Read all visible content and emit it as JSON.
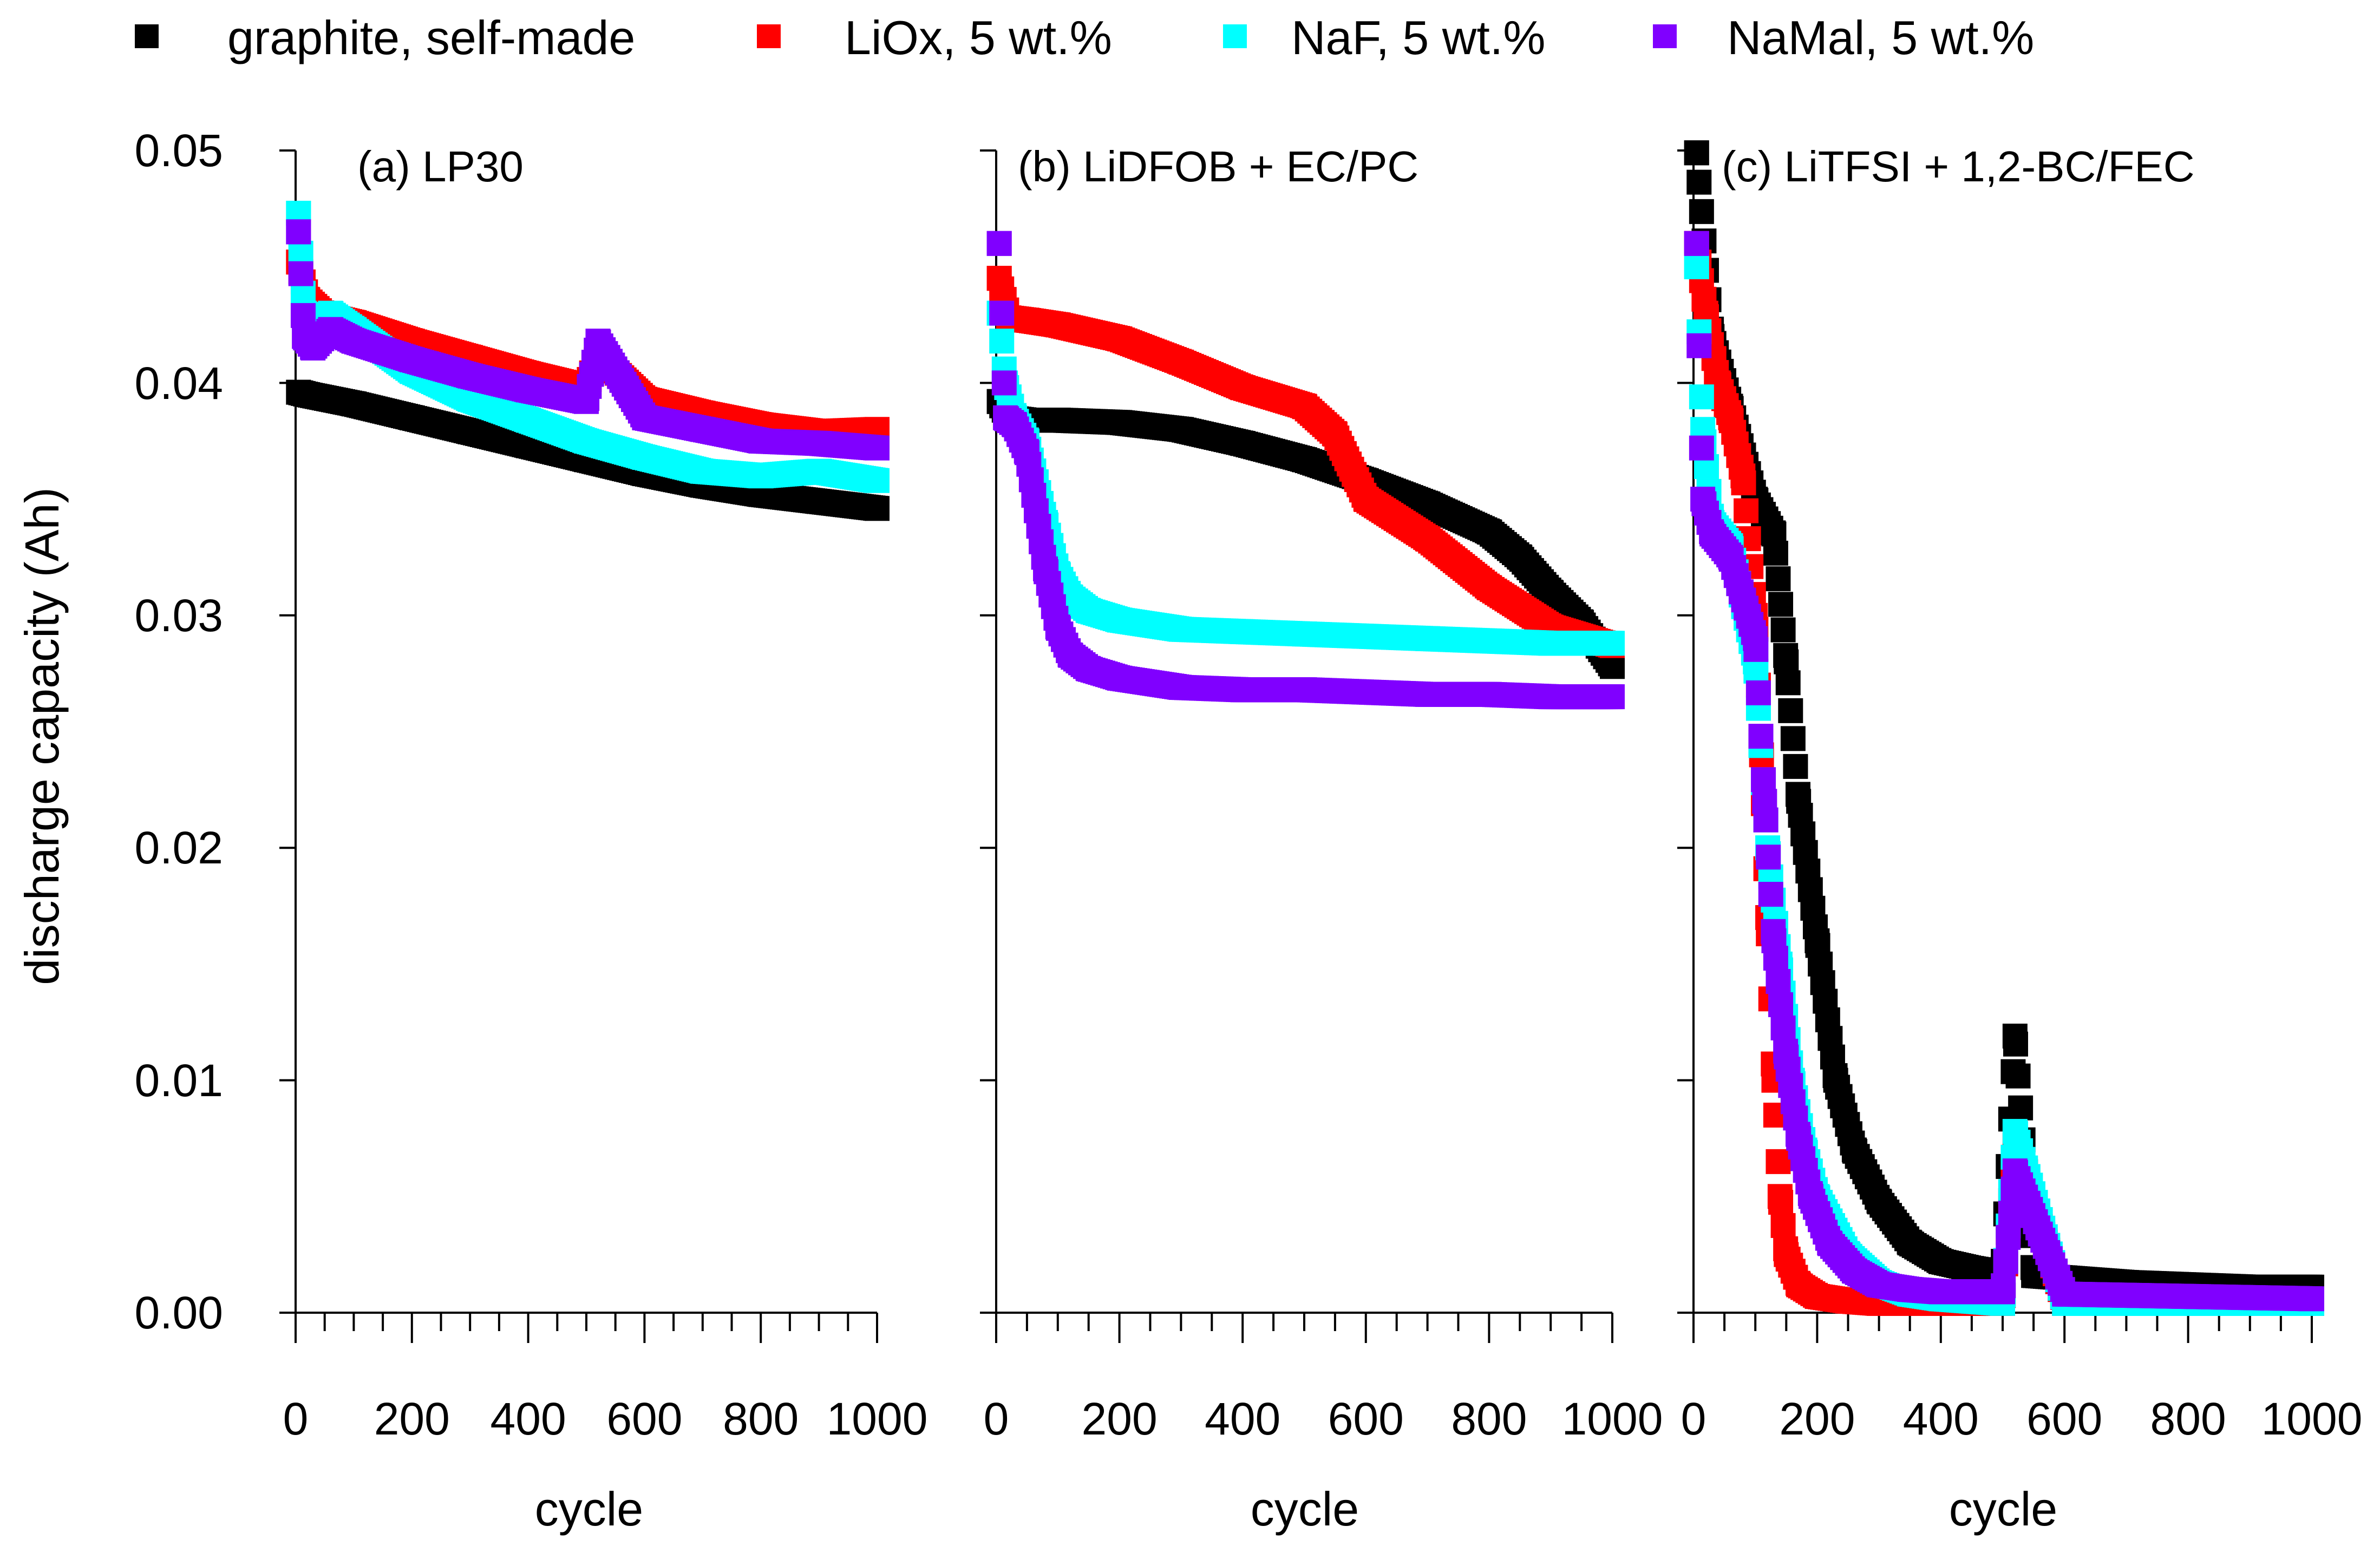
{
  "legend": [
    {
      "label": "graphite, self-made",
      "color": "#000000"
    },
    {
      "label": "LiOx, 5 wt.%",
      "color": "#ff0000"
    },
    {
      "label": "NaF, 5 wt.%",
      "color": "#00ffff"
    },
    {
      "label": "NaMal, 5 wt.%",
      "color": "#8000ff"
    }
  ],
  "y_axis": {
    "label": "discharge capacity (Ah)",
    "ticks": [
      "0.00",
      "0.01",
      "0.02",
      "0.03",
      "0.04",
      "0.05"
    ]
  },
  "x_ticks": [
    "0",
    "200",
    "400",
    "600",
    "800",
    "1000"
  ],
  "chart_data": [
    {
      "type": "scatter",
      "title": "(a) LP30",
      "xlabel": "cycle",
      "ylabel": "discharge capacity (Ah)",
      "xlim": [
        0,
        1000
      ],
      "ylim": [
        0,
        0.05
      ],
      "series": [
        {
          "name": "graphite, self-made",
          "color": "#000000",
          "x": [
            5,
            20,
            100,
            200,
            300,
            400,
            500,
            600,
            700,
            800,
            900,
            1000
          ],
          "y": [
            0.0396,
            0.0395,
            0.0391,
            0.0385,
            0.0379,
            0.0373,
            0.0367,
            0.0361,
            0.0356,
            0.0352,
            0.0349,
            0.0346
          ]
        },
        {
          "name": "LiOx, 5 wt.%",
          "color": "#ff0000",
          "x": [
            5,
            20,
            50,
            100,
            200,
            300,
            400,
            500,
            520,
            600,
            700,
            800,
            900,
            1000
          ],
          "y": [
            0.0452,
            0.0436,
            0.0429,
            0.0426,
            0.0418,
            0.0411,
            0.0404,
            0.0398,
            0.0412,
            0.0393,
            0.0387,
            0.0382,
            0.0379,
            0.038
          ]
        },
        {
          "name": "NaF, 5 wt.%",
          "color": "#00ffff",
          "x": [
            5,
            15,
            30,
            60,
            100,
            200,
            300,
            400,
            500,
            600,
            700,
            800,
            900,
            1000
          ],
          "y": [
            0.0473,
            0.043,
            0.0425,
            0.043,
            0.0423,
            0.0405,
            0.0393,
            0.0384,
            0.0375,
            0.0368,
            0.0362,
            0.036,
            0.0362,
            0.0358
          ]
        },
        {
          "name": "NaMal, 5 wt.%",
          "color": "#8000ff",
          "x": [
            5,
            15,
            30,
            60,
            100,
            200,
            300,
            400,
            500,
            520,
            600,
            700,
            800,
            900,
            1000
          ],
          "y": [
            0.0465,
            0.042,
            0.0415,
            0.0423,
            0.0418,
            0.041,
            0.0403,
            0.0397,
            0.0392,
            0.0418,
            0.0385,
            0.038,
            0.0375,
            0.0374,
            0.0372
          ]
        }
      ]
    },
    {
      "type": "scatter",
      "title": "(b) LiDFOB + EC/PC",
      "xlabel": "cycle",
      "ylabel": "discharge capacity (Ah)",
      "xlim": [
        0,
        1000
      ],
      "ylim": [
        0,
        0.05
      ],
      "series": [
        {
          "name": "graphite, self-made",
          "color": "#000000",
          "x": [
            5,
            20,
            50,
            100,
            200,
            300,
            400,
            500,
            600,
            700,
            800,
            850,
            900,
            950,
            1000
          ],
          "y": [
            0.0392,
            0.0385,
            0.0384,
            0.0384,
            0.0383,
            0.038,
            0.0374,
            0.0367,
            0.0358,
            0.0348,
            0.0336,
            0.0325,
            0.031,
            0.0297,
            0.0278
          ]
        },
        {
          "name": "LiOx, 5 wt.%",
          "color": "#ff0000",
          "x": [
            5,
            20,
            50,
            100,
            200,
            300,
            400,
            500,
            550,
            600,
            700,
            800,
            900,
            1000
          ],
          "y": [
            0.0445,
            0.0428,
            0.0427,
            0.0425,
            0.0419,
            0.0409,
            0.0398,
            0.039,
            0.0378,
            0.035,
            0.0333,
            0.0312,
            0.0295,
            0.0287
          ]
        },
        {
          "name": "NaF, 5 wt.%",
          "color": "#00ffff",
          "x": [
            5,
            15,
            30,
            50,
            80,
            100,
            120,
            150,
            200,
            300,
            400,
            500,
            600,
            700,
            800,
            900,
            1000
          ],
          "y": [
            0.043,
            0.04,
            0.0385,
            0.0375,
            0.034,
            0.0318,
            0.0308,
            0.0302,
            0.0298,
            0.0294,
            0.0293,
            0.0292,
            0.0291,
            0.029,
            0.0289,
            0.0288,
            0.0288
          ]
        },
        {
          "name": "NaMal, 5 wt.%",
          "color": "#8000ff",
          "x": [
            5,
            15,
            30,
            50,
            80,
            100,
            120,
            150,
            200,
            300,
            400,
            500,
            600,
            700,
            800,
            900,
            1000
          ],
          "y": [
            0.046,
            0.0385,
            0.0382,
            0.037,
            0.032,
            0.0295,
            0.0283,
            0.0277,
            0.0273,
            0.0269,
            0.0268,
            0.0268,
            0.0267,
            0.0266,
            0.0266,
            0.0265,
            0.0265
          ]
        }
      ]
    },
    {
      "type": "scatter",
      "title": "(c) LiTFSI + 1,2-BC/FEC",
      "xlabel": "cycle",
      "ylabel": "discharge capacity (Ah)",
      "xlim": [
        0,
        1000
      ],
      "ylim": [
        0,
        0.05
      ],
      "series": [
        {
          "name": "graphite, self-made",
          "color": "#000000",
          "x": [
            5,
            30,
            60,
            100,
            130,
            150,
            170,
            200,
            230,
            260,
            300,
            350,
            400,
            450,
            500,
            520,
            550,
            600,
            700,
            800,
            900,
            1000
          ],
          "y": [
            0.0499,
            0.042,
            0.039,
            0.035,
            0.0335,
            0.028,
            0.022,
            0.016,
            0.01,
            0.007,
            0.0048,
            0.003,
            0.0022,
            0.0019,
            0.0017,
            0.0119,
            0.0016,
            0.0015,
            0.0013,
            0.0012,
            0.0011,
            0.0011
          ]
        },
        {
          "name": "LiOx, 5 wt.%",
          "color": "#ff0000",
          "x": [
            5,
            20,
            40,
            60,
            80,
            100,
            110,
            120,
            130,
            140,
            150,
            170,
            200,
            250,
            300,
            400,
            500,
            520,
            600,
            800,
            1000
          ],
          "y": [
            0.046,
            0.043,
            0.04,
            0.0385,
            0.036,
            0.03,
            0.024,
            0.017,
            0.01,
            0.005,
            0.0025,
            0.0012,
            0.0007,
            0.0005,
            0.0004,
            0.0004,
            0.0004,
            0.0072,
            0.0004,
            0.0004,
            0.0004
          ]
        },
        {
          "name": "NaF, 5 wt.%",
          "color": "#00ffff",
          "x": [
            5,
            15,
            30,
            60,
            100,
            120,
            140,
            160,
            180,
            200,
            250,
            300,
            350,
            400,
            500,
            520,
            600,
            800,
            1000
          ],
          "y": [
            0.045,
            0.038,
            0.034,
            0.033,
            0.028,
            0.02,
            0.015,
            0.01,
            0.007,
            0.005,
            0.0025,
            0.0013,
            0.0008,
            0.0006,
            0.0004,
            0.0078,
            0.0004,
            0.0004,
            0.0004
          ]
        },
        {
          "name": "NaMal, 5 wt.%",
          "color": "#8000ff",
          "x": [
            5,
            15,
            30,
            60,
            100,
            115,
            130,
            150,
            170,
            190,
            220,
            260,
            300,
            350,
            400,
            500,
            520,
            600,
            800,
            1000
          ],
          "y": [
            0.046,
            0.035,
            0.0335,
            0.0325,
            0.029,
            0.022,
            0.016,
            0.011,
            0.0075,
            0.005,
            0.003,
            0.0018,
            0.0012,
            0.001,
            0.0009,
            0.0009,
            0.0061,
            0.0008,
            0.0007,
            0.0006
          ]
        }
      ]
    }
  ]
}
